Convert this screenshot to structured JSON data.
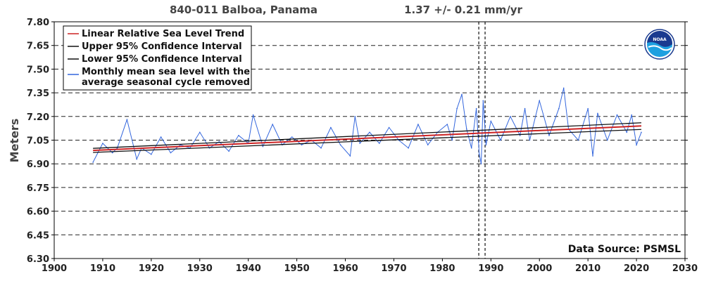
{
  "header": {
    "station": "840-011 Balboa, Panama",
    "trend": "1.37 +/-  0.21 mm/yr"
  },
  "source_label": "Data Source: PSMSL",
  "logo": {
    "icon": "noaa-logo",
    "text": "NOAA"
  },
  "colors": {
    "trend": "#cc2222",
    "confidence": "#111111",
    "monthly": "#3366dd",
    "grid": "#222222",
    "logo_blue": "#1a3a8f",
    "logo_light": "#1ea0e0"
  },
  "chart_data": {
    "type": "line",
    "title": "840-011 Balboa, Panama",
    "subtitle": "1.37 +/-  0.21 mm/yr",
    "xlabel": "",
    "ylabel": "Meters",
    "xlim": [
      1900,
      2030
    ],
    "ylim": [
      6.3,
      7.8
    ],
    "x_ticks": [
      1900,
      1910,
      1920,
      1930,
      1940,
      1950,
      1960,
      1970,
      1980,
      1990,
      2000,
      2010,
      2020,
      2030
    ],
    "y_ticks": [
      "6.30",
      "6.45",
      "6.60",
      "6.75",
      "6.90",
      "7.05",
      "7.20",
      "7.35",
      "7.50",
      "7.65",
      "7.80"
    ],
    "grid": "horizontal dashed",
    "legend_position": "top-left",
    "vertical_markers": [
      1987.5,
      1988.8
    ],
    "series": [
      {
        "name": "Linear Relative Sea Level Trend",
        "x": [
          1908,
          2021
        ],
        "y": [
          6.985,
          7.14
        ]
      },
      {
        "name": "Upper 95% Confidence Interval",
        "x": [
          1908,
          2021
        ],
        "y": [
          6.998,
          7.16
        ]
      },
      {
        "name": "Lower 95% Confidence Interval",
        "x": [
          1908,
          2021
        ],
        "y": [
          6.972,
          7.118
        ]
      },
      {
        "name": "Monthly mean sea level with the average seasonal cycle removed",
        "x": [
          1908,
          1910,
          1912,
          1913,
          1915,
          1917,
          1918,
          1920,
          1922,
          1924,
          1926,
          1928,
          1930,
          1932,
          1934,
          1936,
          1938,
          1940,
          1941,
          1943,
          1945,
          1947,
          1949,
          1951,
          1953,
          1955,
          1957,
          1959,
          1961,
          1962,
          1963,
          1965,
          1967,
          1969,
          1971,
          1973,
          1975,
          1977,
          1979,
          1981,
          1982,
          1983,
          1984,
          1985,
          1986,
          1987,
          1987.6,
          1988.0,
          1988.4,
          1989,
          1990,
          1992,
          1994,
          1996,
          1997,
          1998,
          2000,
          2002,
          2004,
          2005,
          2006,
          2008,
          2010,
          2011,
          2012,
          2014,
          2016,
          2018,
          2019,
          2020,
          2021
        ],
        "y": [
          6.91,
          7.03,
          6.97,
          7.0,
          7.18,
          6.93,
          7.0,
          6.96,
          7.07,
          6.97,
          7.02,
          7.0,
          7.1,
          7.0,
          7.04,
          6.98,
          7.08,
          7.03,
          7.21,
          7.01,
          7.15,
          7.02,
          7.07,
          7.02,
          7.05,
          7.0,
          7.13,
          7.02,
          6.95,
          7.2,
          7.03,
          7.1,
          7.03,
          7.13,
          7.05,
          7.0,
          7.15,
          7.02,
          7.1,
          7.15,
          7.05,
          7.25,
          7.34,
          7.12,
          7.0,
          7.25,
          6.96,
          6.9,
          7.3,
          7.02,
          7.17,
          7.05,
          7.2,
          7.08,
          7.25,
          7.05,
          7.3,
          7.08,
          7.25,
          7.38,
          7.12,
          7.05,
          7.25,
          6.95,
          7.22,
          7.05,
          7.21,
          7.1,
          7.21,
          7.02,
          7.1
        ]
      }
    ]
  }
}
